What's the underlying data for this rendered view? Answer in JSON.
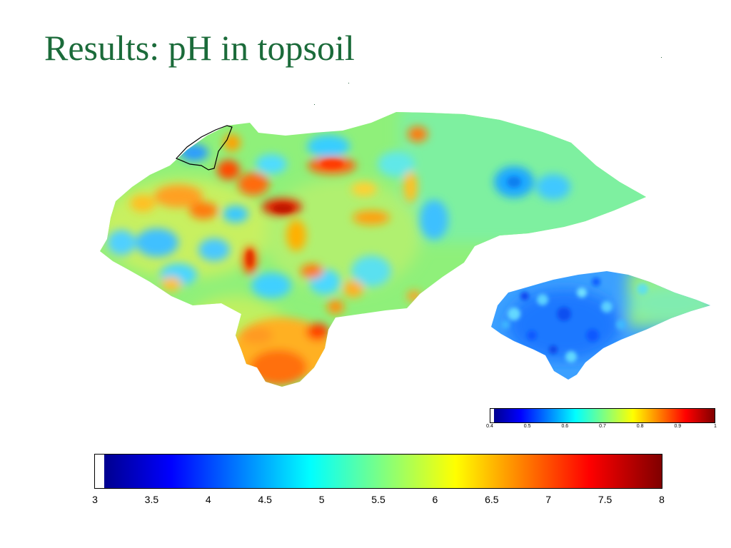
{
  "slide": {
    "title": "Results: pH in topsoil"
  },
  "main_colorbar": {
    "ticks": [
      "3",
      "3.5",
      "4",
      "4.5",
      "5",
      "5.5",
      "6",
      "6.5",
      "7",
      "7.5",
      "8"
    ],
    "range": [
      3,
      8
    ],
    "colormap": "jet"
  },
  "inset_colorbar": {
    "ticks": [
      "0.4",
      "0.5",
      "0.6",
      "0.7",
      "0.8",
      "0.9",
      "1"
    ],
    "range": [
      0.4,
      1.0
    ],
    "colormap": "jet"
  },
  "colors": {
    "title": "#1b6b3a",
    "outline": "#000000"
  }
}
